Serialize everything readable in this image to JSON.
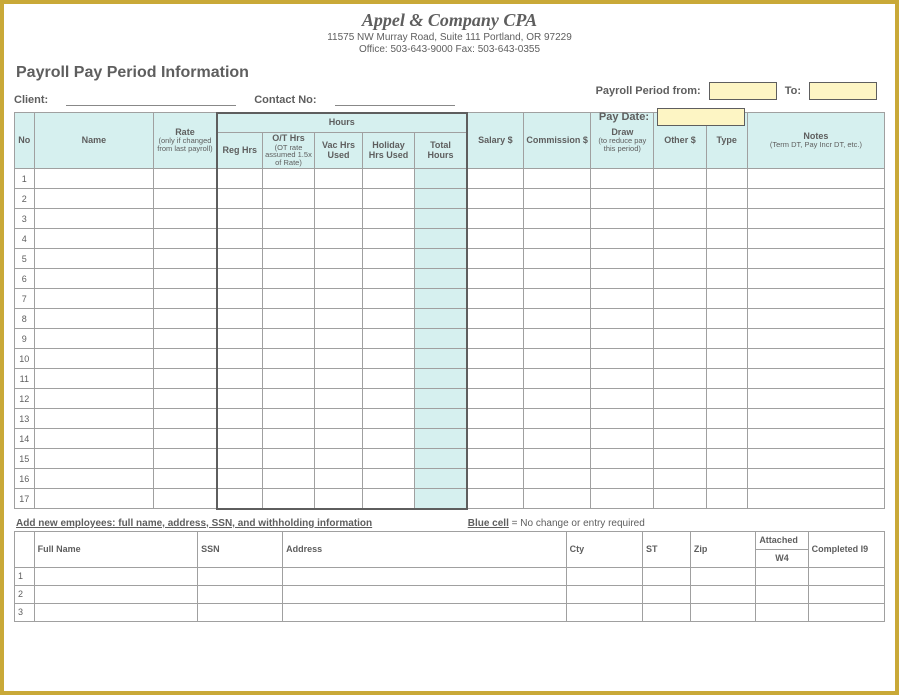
{
  "header": {
    "company": "Appel & Company CPA",
    "address": "11575 NW Murray Road, Suite 111   Portland, OR  97229",
    "phone": "Office: 503-643-9000   Fax: 503-643-0355"
  },
  "title": "Payroll Pay Period Information",
  "fields": {
    "client_label": "Client:",
    "contact_label": "Contact No:",
    "period_from_label": "Payroll Period from:",
    "to_label": "To:",
    "paydate_label": "Pay Date:"
  },
  "colors": {
    "frame_border": "#c9a938",
    "header_bg": "#d6f0ef",
    "yellow_input": "#fdf5c4",
    "grid_border": "#a0a0a0",
    "text": "#5e5e5e",
    "hours_outline": "#5e5e5e"
  },
  "main_table": {
    "hours_group_label": "Hours",
    "columns": [
      {
        "key": "no",
        "label": "No"
      },
      {
        "key": "name",
        "label": "Name"
      },
      {
        "key": "rate",
        "label": "Rate",
        "sub": "(only if changed from last payroll)"
      },
      {
        "key": "reg",
        "label": "Reg Hrs"
      },
      {
        "key": "ot",
        "label": "O/T Hrs",
        "sub": "(OT rate assumed 1.5x of Rate)"
      },
      {
        "key": "vac",
        "label": "Vac Hrs Used"
      },
      {
        "key": "hol",
        "label": "Holiday Hrs Used"
      },
      {
        "key": "tot",
        "label": "Total Hours"
      },
      {
        "key": "sal",
        "label": "Salary $"
      },
      {
        "key": "com",
        "label": "Commission $"
      },
      {
        "key": "draw",
        "label": "Draw",
        "sub": "(to reduce pay this period)"
      },
      {
        "key": "oth",
        "label": "Other $"
      },
      {
        "key": "type",
        "label": "Type"
      },
      {
        "key": "notes",
        "label": "Notes",
        "sub": "(Term DT, Pay Incr DT, etc.)"
      }
    ],
    "row_count": 17
  },
  "legend": {
    "add_text": "Add new employees: full name, address, SSN, and withholding information",
    "blue_label": "Blue cell",
    "blue_text": " = No change or entry required"
  },
  "emp_table": {
    "attached_label": "Attached",
    "columns": [
      "Full Name",
      "SSN",
      "Address",
      "Cty",
      "ST",
      "Zip",
      "W4",
      "Completed I9"
    ],
    "row_count": 3
  }
}
